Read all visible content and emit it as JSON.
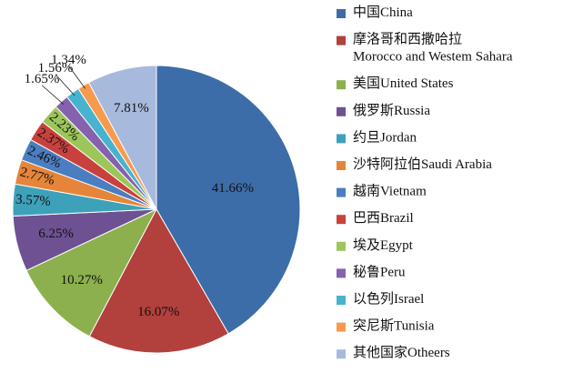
{
  "chart_data": {
    "type": "pie",
    "categories": [
      "中国China",
      "摩洛哥和西撒哈拉\nMorocco and Westem Sahara",
      "美国United States",
      "俄罗斯Russia",
      "约旦Jordan",
      "沙特阿拉伯Saudi Arabia",
      "越南Vietnam",
      "巴西Brazil",
      "埃及Egypt",
      "秘鲁Peru",
      "以色列Israel",
      "突尼斯Tunisia",
      "其他国家Otheers"
    ],
    "values": [
      41.66,
      16.07,
      10.27,
      6.25,
      3.57,
      2.77,
      2.46,
      2.37,
      2.23,
      1.65,
      1.56,
      1.34,
      7.81
    ],
    "value_labels": [
      "41.66%",
      "16.07%",
      "10.27%",
      "6.25%",
      "3.57%",
      "2.77%",
      "2.46%",
      "2.37%",
      "2.23%",
      "1.65%",
      "1.56%",
      "1.34%",
      "7.81%"
    ],
    "colors": [
      "#3d6da8",
      "#b2403c",
      "#8cb04d",
      "#6e5193",
      "#3ea1ba",
      "#e5853a",
      "#4a7ec0",
      "#c8413d",
      "#9cc65a",
      "#8661ad",
      "#47b3cf",
      "#f79a4f",
      "#a7b9dc"
    ],
    "legend": "right"
  }
}
